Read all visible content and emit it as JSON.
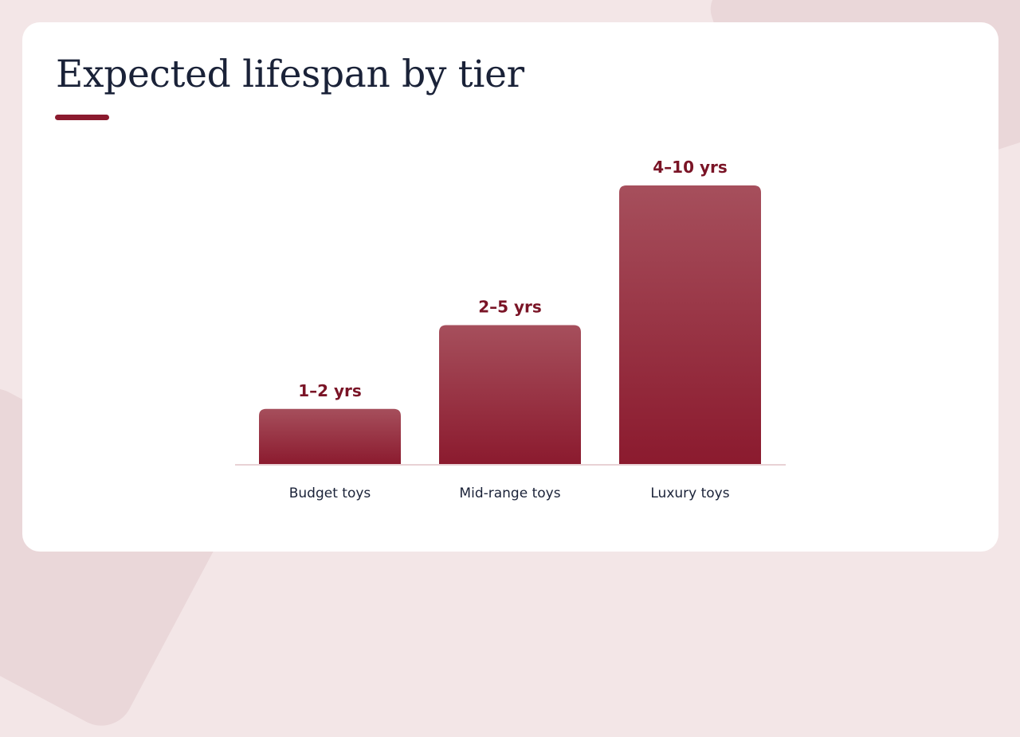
{
  "slide": {
    "title": "Expected lifespan by tier"
  },
  "colors": {
    "accent": "#8b1a2e",
    "bar_top": "#a64f5c",
    "bar_bottom": "#8b1a2e",
    "value_text": "#7a1426",
    "title_text": "#1a2238",
    "baseline": "#e8d2d5"
  },
  "chart_data": {
    "type": "bar",
    "categories": [
      "Budget toys",
      "Mid-range toys",
      "Luxury toys"
    ],
    "ranges": [
      [
        1,
        2
      ],
      [
        2,
        5
      ],
      [
        4,
        10
      ]
    ],
    "values": [
      2,
      5,
      10
    ],
    "data_labels": [
      "1–2 yrs",
      "2–5 yrs",
      "4–10 yrs"
    ],
    "title": "Expected lifespan by tier",
    "xlabel": "",
    "ylabel": "",
    "grid": false,
    "legend": "none"
  }
}
